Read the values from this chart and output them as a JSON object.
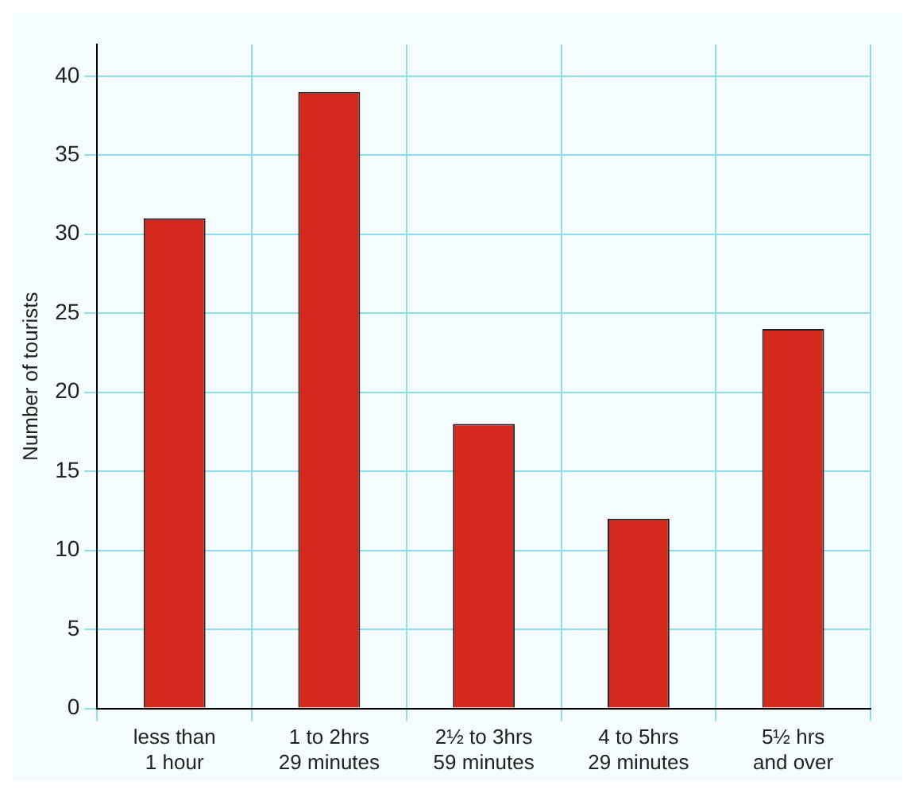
{
  "chart_data": {
    "type": "bar",
    "ylabel": "Number of tourists",
    "categories": [
      "less than\n1 hour",
      "1 to 2hrs\n29 minutes",
      "2½ to 3hrs\n59 minutes",
      "4 to 5hrs\n29 minutes",
      "5½ hrs\nand over"
    ],
    "values": [
      31,
      39,
      18,
      12,
      24
    ],
    "color": "#d42a1e",
    "ylim": [
      0,
      42
    ],
    "yticks": [
      0,
      5,
      10,
      15,
      20,
      25,
      30,
      35,
      40
    ],
    "grid": true,
    "legend": false
  }
}
